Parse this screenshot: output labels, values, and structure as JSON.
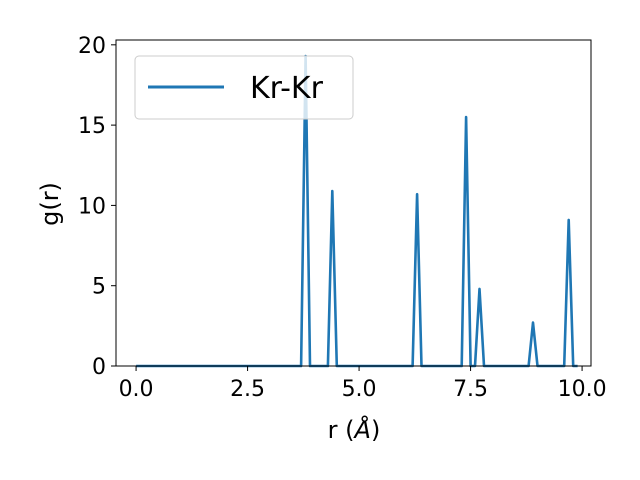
{
  "chart_data": {
    "type": "line",
    "xlabel": "r (",
    "xlabel_unit": "Å",
    "xlabel_close": ")",
    "ylabel": "g(r)",
    "xlim": [
      -0.45,
      10.2
    ],
    "ylim": [
      0,
      20.3
    ],
    "xticks": [
      0.0,
      2.5,
      5.0,
      7.5,
      10.0
    ],
    "xtick_labels": [
      "0.0",
      "2.5",
      "5.0",
      "7.5",
      "10.0"
    ],
    "yticks": [
      0,
      5,
      10,
      15,
      20
    ],
    "ytick_labels": [
      "0",
      "5",
      "10",
      "15",
      "20"
    ],
    "grid": false,
    "legend_position": "top-left",
    "series": [
      {
        "name": "Kr-Kr",
        "color": "#1f77b4",
        "points": [
          [
            0.0,
            0
          ],
          [
            3.7,
            0
          ],
          [
            3.8,
            19.3
          ],
          [
            3.9,
            0
          ],
          [
            4.3,
            0
          ],
          [
            4.4,
            10.9
          ],
          [
            4.5,
            0
          ],
          [
            6.2,
            0
          ],
          [
            6.3,
            10.7
          ],
          [
            6.4,
            0
          ],
          [
            7.3,
            0
          ],
          [
            7.4,
            15.5
          ],
          [
            7.5,
            0
          ],
          [
            7.6,
            0
          ],
          [
            7.7,
            4.8
          ],
          [
            7.8,
            0
          ],
          [
            8.8,
            0
          ],
          [
            8.9,
            2.7
          ],
          [
            9.0,
            0
          ],
          [
            9.6,
            0
          ],
          [
            9.7,
            9.1
          ],
          [
            9.8,
            0
          ],
          [
            9.9,
            0
          ]
        ]
      }
    ]
  }
}
